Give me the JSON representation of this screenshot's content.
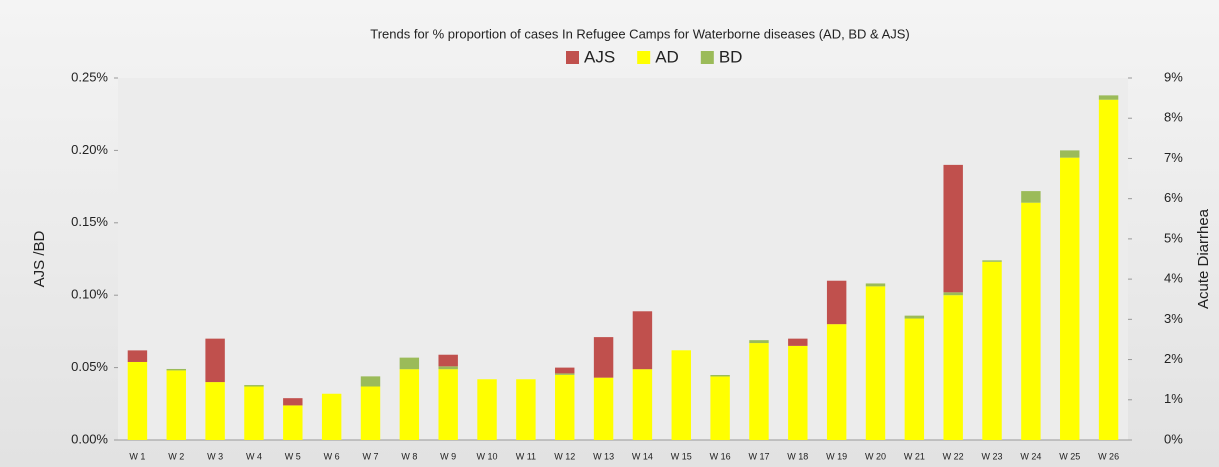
{
  "chart_data": {
    "type": "bar",
    "title": "Trends for % proportion of cases In Refugee Camps for Waterborne diseases (AD, BD & AJS)",
    "y_label": "AJS /BD",
    "y2_label": "Acute Diarrhea",
    "categories": [
      "W 1",
      "W 2",
      "W 3",
      "W 4",
      "W 5",
      "W 6",
      "W 7",
      "W 8",
      "W 9",
      "W 10",
      "W 11",
      "W 12",
      "W 13",
      "W 14",
      "W 15",
      "W 16",
      "W 17",
      "W 18",
      "W 19",
      "W 20",
      "W 21",
      "W 22",
      "W 23",
      "W 24",
      "W 25",
      "W 26"
    ],
    "stacked": true,
    "series": [
      {
        "name": "AJS",
        "color": "#c0504d",
        "values": [
          0.008,
          0,
          0.03,
          0,
          0.005,
          0,
          0,
          0,
          0.008,
          0,
          0,
          0.004,
          0.028,
          0.04,
          0,
          0,
          0,
          0.005,
          0.03,
          0,
          0,
          0.088,
          0,
          0,
          0,
          0
        ]
      },
      {
        "name": "AD",
        "color": "#ffff00",
        "axis": "y2",
        "values": [
          1.94,
          1.73,
          1.44,
          1.33,
          0.86,
          1.15,
          1.33,
          1.76,
          1.76,
          1.51,
          1.51,
          1.62,
          1.55,
          1.76,
          2.23,
          1.58,
          2.41,
          2.34,
          2.88,
          3.82,
          3.02,
          3.6,
          4.43,
          5.9,
          7.02,
          8.46
        ]
      },
      {
        "name": "BD",
        "color": "#9bbb59",
        "values": [
          0,
          0.001,
          0,
          0.001,
          0,
          0,
          0.007,
          0.008,
          0.002,
          0,
          0,
          0.001,
          0,
          0,
          0,
          0.001,
          0.002,
          0,
          0,
          0.002,
          0.002,
          0.002,
          0.001,
          0.008,
          0.005,
          0.003
        ]
      }
    ],
    "ylim": [
      0,
      0.25
    ],
    "yticks": [
      {
        "value": 0,
        "label": "0.00%"
      },
      {
        "value": 0.05,
        "label": "0.05%"
      },
      {
        "value": 0.1,
        "label": "0.10%"
      },
      {
        "value": 0.15,
        "label": "0.15%"
      },
      {
        "value": 0.2,
        "label": "0.20%"
      },
      {
        "value": 0.25,
        "label": "0.25%"
      }
    ],
    "y2lim": [
      0,
      9
    ],
    "y2ticks": [
      {
        "value": 0,
        "label": "0%"
      },
      {
        "value": 1,
        "label": "1%"
      },
      {
        "value": 2,
        "label": "2%"
      },
      {
        "value": 3,
        "label": "3%"
      },
      {
        "value": 4,
        "label": "4%"
      },
      {
        "value": 5,
        "label": "5%"
      },
      {
        "value": 6,
        "label": "6%"
      },
      {
        "value": 7,
        "label": "7%"
      },
      {
        "value": 8,
        "label": "8%"
      },
      {
        "value": 9,
        "label": "9%"
      }
    ],
    "legend": "top"
  }
}
